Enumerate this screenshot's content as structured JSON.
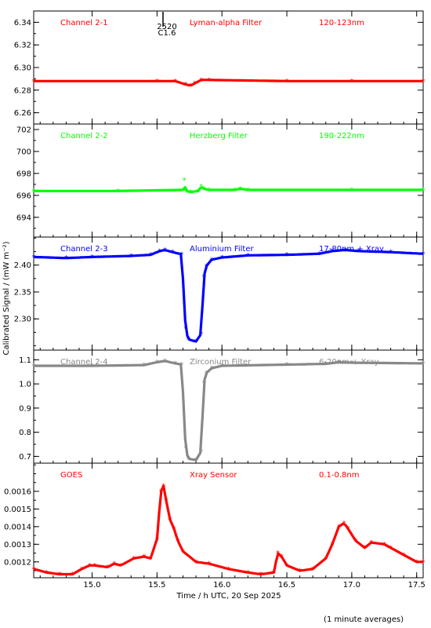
{
  "chart_data": {
    "type": "scatter",
    "title": "",
    "xlabel": "Time / h UTC, 20 Sep 2025",
    "ylabel": "Calibrated Signal / (mW m⁻²)",
    "xlim": [
      14.55,
      17.55
    ],
    "xticks": [
      15.0,
      15.5,
      16.0,
      16.5,
      17.0,
      17.5
    ],
    "xtick_labels": [
      "15.0",
      "15.5",
      "16.0",
      "16.5",
      "17.0",
      "17.5"
    ],
    "footnote": "(1 minute averages)",
    "event_marker": {
      "x": 15.52,
      "label_top": "2520",
      "label_bottom": "C1.6"
    },
    "panels": [
      {
        "channel": "Channel 2-1",
        "filter": "Lyman-alpha Filter",
        "band": "120-123nm",
        "color": "#ff0000",
        "ylim": [
          6.25,
          6.35
        ],
        "yticks": [
          6.26,
          6.28,
          6.3,
          6.32,
          6.34
        ],
        "ytick_labels": [
          "6.26",
          "6.28",
          "6.30",
          "6.32",
          "6.34"
        ],
        "series": [
          {
            "x": [
              14.55,
              15.5,
              15.64,
              15.72,
              15.76,
              15.79,
              15.84,
              15.9,
              16.5,
              17.0,
              17.55
            ],
            "y": [
              6.288,
              6.288,
              6.288,
              6.285,
              6.284,
              6.286,
              6.289,
              6.289,
              6.288,
              6.288,
              6.288
            ]
          }
        ]
      },
      {
        "channel": "Channel 2-2",
        "filter": "Herzberg Filter",
        "band": "190-222nm",
        "color": "#00ff00",
        "ylim": [
          692.2,
          702.5
        ],
        "yticks": [
          694,
          696,
          698,
          700,
          702
        ],
        "ytick_labels": [
          "694",
          "696",
          "698",
          "700",
          "702"
        ],
        "series": [
          {
            "x": [
              14.55,
              15.2,
              15.7,
              15.71,
              15.72,
              15.76,
              15.82,
              15.84,
              15.86,
              15.9,
              16.1,
              16.14,
              16.2,
              17.0,
              17.55
            ],
            "y": [
              696.4,
              696.4,
              696.5,
              697.4,
              696.4,
              696.3,
              696.4,
              696.8,
              696.6,
              696.5,
              696.5,
              696.6,
              696.5,
              696.5,
              696.5
            ]
          }
        ]
      },
      {
        "channel": "Channel 2-3",
        "filter": "Aluminium Filter",
        "band": "17-80nm + Xray",
        "color": "#0000ff",
        "ylim": [
          2.242,
          2.452
        ],
        "yticks": [
          2.3,
          2.35,
          2.4
        ],
        "ytick_labels": [
          "2.30",
          "2.35",
          "2.40"
        ],
        "series": [
          {
            "x": [
              14.55,
              14.8,
              15.0,
              15.3,
              15.45,
              15.52,
              15.56,
              15.62,
              15.69,
              15.72,
              15.74,
              15.8,
              15.84,
              15.86,
              15.88,
              15.92,
              16.0,
              16.2,
              16.5,
              16.75,
              16.85,
              16.95,
              17.05,
              17.3,
              17.55
            ],
            "y": [
              2.415,
              2.413,
              2.415,
              2.417,
              2.419,
              2.426,
              2.428,
              2.424,
              2.42,
              2.282,
              2.262,
              2.258,
              2.272,
              2.378,
              2.398,
              2.41,
              2.414,
              2.418,
              2.419,
              2.421,
              2.426,
              2.428,
              2.426,
              2.424,
              2.421
            ]
          }
        ]
      },
      {
        "channel": "Channel 2-4",
        "filter": "Zirconium Filter",
        "band": "6-20nm + Xray",
        "color": "#888888",
        "ylim": [
          0.672,
          1.14
        ],
        "yticks": [
          0.7,
          0.8,
          0.9,
          1.0,
          1.1
        ],
        "ytick_labels": [
          "0.7",
          "0.8",
          "0.9",
          "1.0",
          "1.1"
        ],
        "series": [
          {
            "x": [
              14.55,
              15.0,
              15.4,
              15.5,
              15.56,
              15.64,
              15.69,
              15.72,
              15.74,
              15.8,
              15.84,
              15.86,
              15.88,
              15.92,
              16.0,
              16.5,
              16.8,
              16.9,
              17.0,
              17.55
            ],
            "y": [
              1.075,
              1.075,
              1.078,
              1.09,
              1.095,
              1.085,
              1.08,
              0.735,
              0.69,
              0.685,
              0.72,
              1.005,
              1.045,
              1.065,
              1.075,
              1.08,
              1.083,
              1.09,
              1.088,
              1.085
            ]
          }
        ]
      },
      {
        "channel": "GOES",
        "filter": "Xray Sensor",
        "band": "0.1-0.8nm",
        "color": "#ff0000",
        "ylim": [
          0.00111,
          0.00176
        ],
        "yticks": [
          0.0012,
          0.0013,
          0.0014,
          0.0015,
          0.0016
        ],
        "ytick_labels": [
          "0.0012",
          "0.0013",
          "0.0014",
          "0.0015",
          "0.0016"
        ],
        "series": [
          {
            "x": [
              14.55,
              14.65,
              14.75,
              14.85,
              14.92,
              14.98,
              15.02,
              15.12,
              15.17,
              15.22,
              15.32,
              15.4,
              15.45,
              15.5,
              15.53,
              15.55,
              15.57,
              15.6,
              15.63,
              15.66,
              15.7,
              15.8,
              15.9,
              16.05,
              16.2,
              16.3,
              16.4,
              16.43,
              16.46,
              16.5,
              16.6,
              16.7,
              16.8,
              16.85,
              16.9,
              16.94,
              16.97,
              17.03,
              17.1,
              17.15,
              17.25,
              17.3,
              17.4,
              17.5,
              17.55
            ],
            "y": [
              0.00116,
              0.00114,
              0.00113,
              0.00113,
              0.00116,
              0.00118,
              0.00118,
              0.00117,
              0.00119,
              0.00118,
              0.00122,
              0.00123,
              0.00122,
              0.00133,
              0.0016,
              0.00163,
              0.00155,
              0.00144,
              0.00139,
              0.00132,
              0.00126,
              0.0012,
              0.00119,
              0.00116,
              0.00114,
              0.00113,
              0.00114,
              0.00125,
              0.00123,
              0.00118,
              0.00115,
              0.00116,
              0.00122,
              0.0013,
              0.0014,
              0.00142,
              0.00139,
              0.00132,
              0.00128,
              0.00131,
              0.0013,
              0.00128,
              0.00124,
              0.0012,
              0.0012
            ]
          }
        ]
      }
    ]
  }
}
